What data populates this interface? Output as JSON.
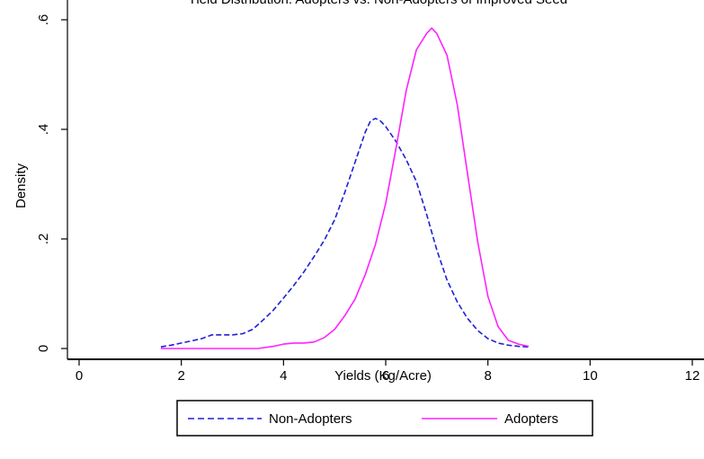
{
  "chart_data": {
    "type": "line",
    "title": "Yield Distribution: Adopters vs. Non-Adopters of Improved Seed",
    "xlabel": "Yields (Kg/Acre)",
    "ylabel": "Density",
    "xlim": [
      0,
      12
    ],
    "ylim": [
      0,
      0.6
    ],
    "x_ticks": [
      0,
      2,
      4,
      6,
      8,
      10,
      12
    ],
    "y_ticks": [
      0,
      0.2,
      0.4,
      0.6
    ],
    "y_tick_labels": [
      "0",
      ".2",
      ".4",
      ".6"
    ],
    "grid": false,
    "legend_position": "bottom",
    "series": [
      {
        "name": "Non-Adopters",
        "color": "#1f1fd6",
        "style": "dashed",
        "x": [
          1.6,
          1.8,
          2.0,
          2.2,
          2.4,
          2.6,
          2.8,
          3.0,
          3.2,
          3.4,
          3.6,
          3.8,
          4.0,
          4.2,
          4.4,
          4.6,
          4.8,
          5.0,
          5.2,
          5.4,
          5.6,
          5.7,
          5.8,
          5.9,
          6.0,
          6.2,
          6.4,
          6.6,
          6.8,
          7.0,
          7.2,
          7.4,
          7.6,
          7.8,
          8.0,
          8.2,
          8.4,
          8.6,
          8.8
        ],
        "y": [
          0.003,
          0.006,
          0.01,
          0.014,
          0.018,
          0.025,
          0.025,
          0.025,
          0.027,
          0.035,
          0.052,
          0.07,
          0.092,
          0.115,
          0.14,
          0.168,
          0.198,
          0.235,
          0.285,
          0.34,
          0.395,
          0.415,
          0.42,
          0.415,
          0.405,
          0.378,
          0.345,
          0.305,
          0.245,
          0.18,
          0.125,
          0.085,
          0.055,
          0.033,
          0.018,
          0.01,
          0.006,
          0.004,
          0.003
        ]
      },
      {
        "name": "Adopters",
        "color": "#ff22ff",
        "style": "solid",
        "x": [
          1.6,
          2.0,
          2.5,
          3.0,
          3.5,
          3.8,
          4.0,
          4.2,
          4.4,
          4.6,
          4.8,
          5.0,
          5.2,
          5.4,
          5.6,
          5.8,
          6.0,
          6.2,
          6.4,
          6.6,
          6.8,
          6.9,
          7.0,
          7.2,
          7.4,
          7.6,
          7.8,
          8.0,
          8.2,
          8.4,
          8.6,
          8.8
        ],
        "y": [
          0.0,
          0.0,
          0.0,
          0.0,
          0.0,
          0.004,
          0.008,
          0.01,
          0.01,
          0.012,
          0.02,
          0.035,
          0.06,
          0.09,
          0.135,
          0.19,
          0.265,
          0.365,
          0.47,
          0.545,
          0.575,
          0.585,
          0.575,
          0.535,
          0.445,
          0.32,
          0.195,
          0.095,
          0.04,
          0.015,
          0.008,
          0.004
        ]
      }
    ]
  }
}
